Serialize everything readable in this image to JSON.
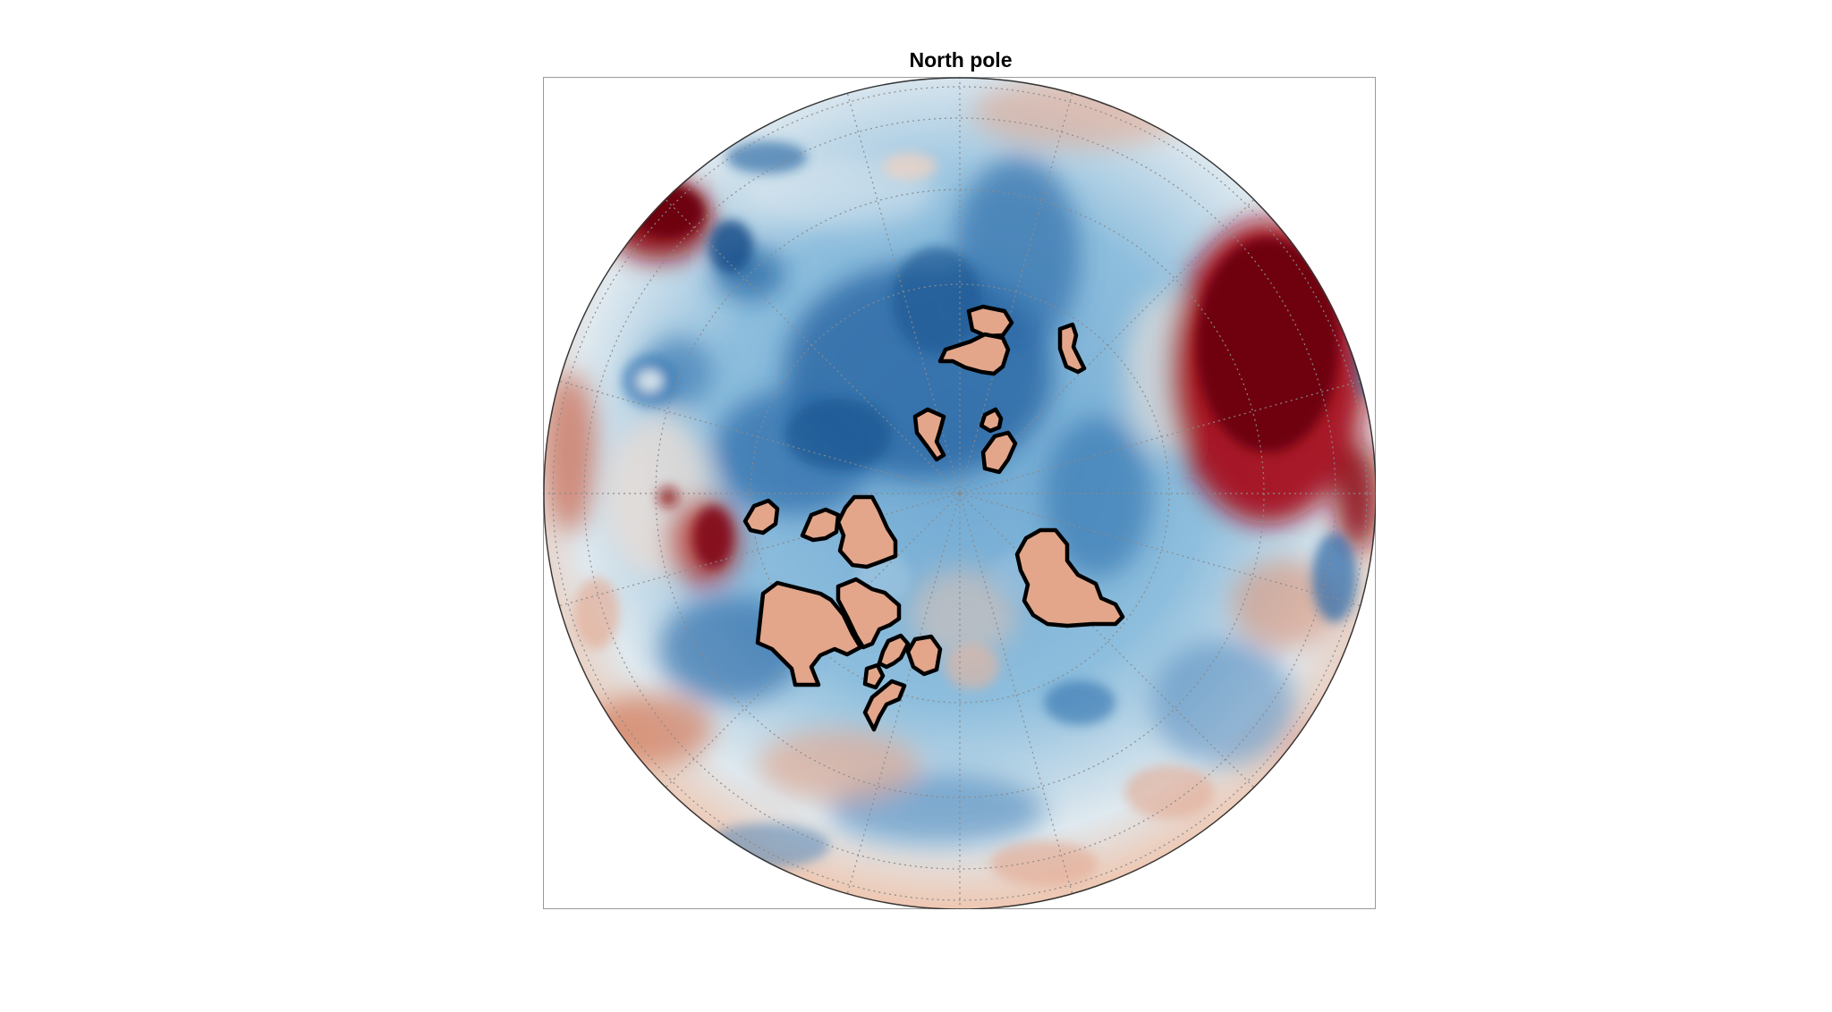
{
  "title": "North pole",
  "map": {
    "projection": "orthographic",
    "center": "north-pole",
    "graticule": "dotted",
    "colormap": {
      "high": "#67000d",
      "mid_high": "#d6604d",
      "neutral": "#f7f7f7",
      "mid_low": "#4393c3",
      "low": "#053061"
    },
    "outline_color": "#000000",
    "outlined_region_fill": "#e3a68a"
  }
}
